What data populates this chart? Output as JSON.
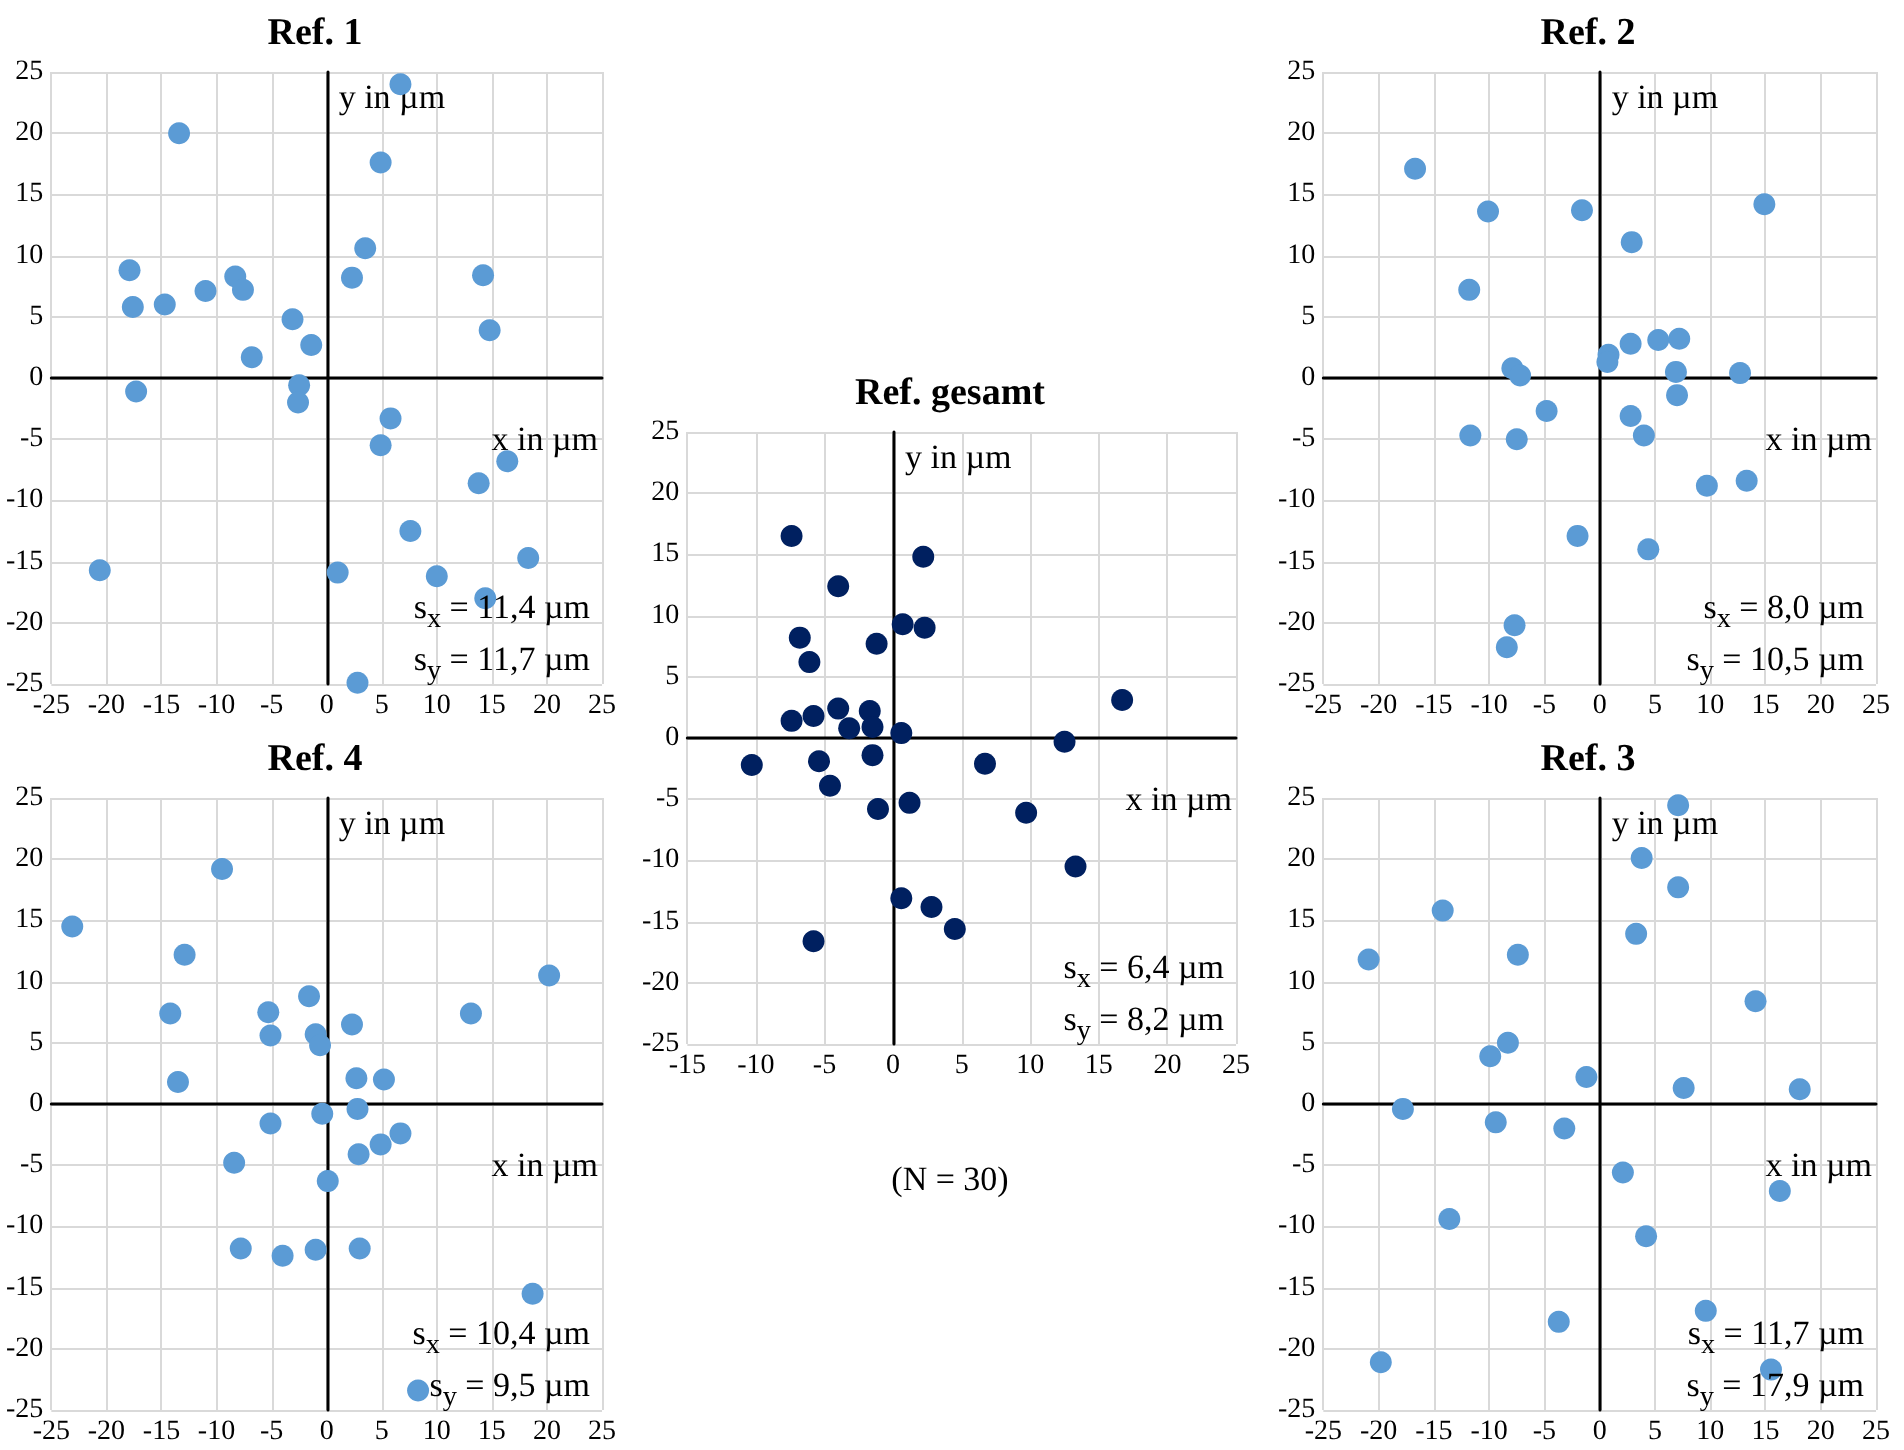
{
  "chart_data": [
    {
      "type": "scatter",
      "title": "Ref. 1",
      "xlabel": "x in µm",
      "ylabel": "y in µm",
      "grid": true,
      "marker": "circle",
      "xlim": [
        -25,
        25
      ],
      "ylim": [
        -25,
        25
      ],
      "xticks": [
        -25,
        -20,
        -15,
        -10,
        -5,
        0,
        5,
        10,
        15,
        20,
        25
      ],
      "yticks": [
        -25,
        -20,
        -15,
        -10,
        -5,
        0,
        5,
        10,
        15,
        20,
        25
      ],
      "annotations": [
        "s$_{x}$ = 11,4 µm",
        "s$_{y}$ = 11,7 µm"
      ],
      "series": [
        {
          "color": "#5b9bd5",
          "x": [
            -13.4,
            6.7,
            4.9,
            3.5,
            2.3,
            14.2,
            14.8,
            -17.9,
            -17.6,
            -14.7,
            -11.0,
            -8.3,
            -7.6,
            -6.8,
            -3.1,
            -1.4,
            -2.5,
            -2.6,
            -17.3,
            5.8,
            4.9,
            16.4,
            13.8,
            7.6,
            18.3,
            10.0,
            14.4,
            1.0,
            -20.6,
            2.8
          ],
          "values": [
            20.0,
            24.0,
            17.6,
            10.6,
            8.2,
            8.4,
            3.9,
            8.8,
            5.8,
            6.0,
            7.1,
            8.3,
            7.2,
            1.7,
            4.8,
            2.7,
            -0.6,
            -2.0,
            -1.1,
            -3.3,
            -5.5,
            -6.8,
            -8.6,
            -12.5,
            -14.7,
            -16.2,
            -18.0,
            -15.9,
            -15.7,
            -24.9
          ]
        }
      ]
    },
    {
      "type": "scatter",
      "title": "Ref. 2",
      "xlabel": "x in µm",
      "ylabel": "y in µm",
      "grid": true,
      "marker": "circle",
      "xlim": [
        -25,
        25
      ],
      "ylim": [
        -25,
        25
      ],
      "xticks": [
        -25,
        -20,
        -15,
        -10,
        -5,
        0,
        5,
        10,
        15,
        20,
        25
      ],
      "yticks": [
        -25,
        -20,
        -15,
        -10,
        -5,
        0,
        5,
        10,
        15,
        20,
        25
      ],
      "annotations": [
        "s$_{x}$ = 8,0 µm",
        "s$_{y}$ = 10,5 µm"
      ],
      "series": [
        {
          "color": "#5b9bd5",
          "x": [
            -16.7,
            -10.1,
            -1.6,
            2.9,
            14.9,
            -11.8,
            -7.9,
            -7.2,
            0.8,
            0.7,
            2.8,
            5.3,
            7.2,
            6.9,
            12.7,
            7.0,
            -4.8,
            2.8,
            4.0,
            -11.7,
            -7.5,
            9.7,
            13.3,
            -2.0,
            4.4,
            -7.7,
            -8.4
          ],
          "values": [
            17.1,
            13.6,
            13.7,
            11.1,
            14.2,
            7.2,
            0.8,
            0.2,
            1.9,
            1.3,
            2.8,
            3.1,
            3.2,
            0.5,
            0.4,
            -1.4,
            -2.7,
            -3.1,
            -4.7,
            -4.7,
            -5.0,
            -8.8,
            -8.4,
            -12.9,
            -14.0,
            -20.2,
            -22.0
          ]
        }
      ]
    },
    {
      "type": "scatter",
      "title": "Ref. gesamt",
      "xlabel": "x in µm",
      "ylabel": "y in µm",
      "grid": true,
      "marker": "circle",
      "xlim": [
        -15,
        25
      ],
      "ylim": [
        -25,
        25
      ],
      "xticks": [
        -15,
        -10,
        -5,
        0,
        5,
        10,
        15,
        20,
        25
      ],
      "yticks": [
        -25,
        -20,
        -15,
        -10,
        -5,
        0,
        5,
        10,
        15,
        20,
        25
      ],
      "annotations": [
        "s$_{x}$ = 6,4 µm",
        "s$_{y}$ = 8,2 µm",
        "(N = 30)"
      ],
      "series": [
        {
          "color": "#002060",
          "x": [
            -7.4,
            2.2,
            -4.0,
            0.7,
            2.3,
            -1.2,
            -6.8,
            -6.1,
            -4.0,
            -7.4,
            -5.8,
            -3.2,
            -1.7,
            -1.5,
            0.6,
            16.7,
            12.5,
            -10.3,
            -5.4,
            -1.5,
            -4.6,
            6.7,
            -1.1,
            1.2,
            9.7,
            13.3,
            0.6,
            2.8,
            4.5,
            -5.8
          ],
          "values": [
            16.5,
            14.8,
            12.4,
            9.3,
            9.0,
            7.7,
            8.2,
            6.2,
            2.4,
            1.4,
            1.8,
            0.8,
            2.2,
            0.9,
            0.4,
            3.1,
            -0.3,
            -2.2,
            -1.9,
            -1.4,
            -3.9,
            -2.1,
            -5.8,
            -5.3,
            -6.1,
            -10.5,
            -13.1,
            -13.8,
            -15.6,
            -16.6
          ]
        }
      ]
    },
    {
      "type": "scatter",
      "title": "Ref. 4",
      "xlabel": "x in µm",
      "ylabel": "y in µm",
      "grid": true,
      "marker": "circle",
      "xlim": [
        -25,
        25
      ],
      "ylim": [
        -25,
        25
      ],
      "xticks": [
        -25,
        -20,
        -15,
        -10,
        -5,
        0,
        5,
        10,
        15,
        20,
        25
      ],
      "yticks": [
        -25,
        -20,
        -15,
        -10,
        -5,
        0,
        5,
        10,
        15,
        20,
        25
      ],
      "annotations": [
        "s$_{x}$ = 10,4 µm",
        "s$_{y}$ = 9,5 µm"
      ],
      "series": [
        {
          "color": "#5b9bd5",
          "x": [
            -23.1,
            -9.5,
            -12.9,
            -14.2,
            -13.5,
            -1.6,
            -5.3,
            -5.1,
            -1.0,
            -0.6,
            2.3,
            13.1,
            20.2,
            2.7,
            5.2,
            2.8,
            -0.4,
            -5.1,
            6.7,
            4.9,
            2.9,
            -8.4,
            0.1,
            -7.8,
            -4.0,
            -1.0,
            3.0,
            18.7,
            8.3
          ],
          "values": [
            14.5,
            19.2,
            12.2,
            7.4,
            1.8,
            8.8,
            7.5,
            5.6,
            5.7,
            4.8,
            6.5,
            7.4,
            10.5,
            2.1,
            2.0,
            -0.4,
            -0.8,
            -1.6,
            -2.4,
            -3.3,
            -4.1,
            -4.8,
            -6.3,
            -11.8,
            -12.4,
            -11.9,
            -11.8,
            -15.5,
            -23.4
          ]
        }
      ]
    },
    {
      "type": "scatter",
      "title": "Ref. 3",
      "xlabel": "x in µm",
      "ylabel": "y in µm",
      "grid": true,
      "marker": "circle",
      "xlim": [
        -25,
        25
      ],
      "ylim": [
        -25,
        25
      ],
      "xticks": [
        -25,
        -20,
        -15,
        -10,
        -5,
        0,
        5,
        10,
        15,
        20,
        25
      ],
      "yticks": [
        -25,
        -20,
        -15,
        -10,
        -5,
        0,
        5,
        10,
        15,
        20,
        25
      ],
      "annotations": [
        "s$_{x}$ = 11,7 µm",
        "s$_{y}$ = 17,9 µm"
      ],
      "series": [
        {
          "color": "#5b9bd5",
          "x": [
            7.1,
            3.8,
            7.1,
            -14.2,
            3.3,
            -20.9,
            -7.4,
            14.1,
            -8.3,
            -9.9,
            -1.2,
            7.6,
            18.1,
            -17.8,
            -9.4,
            -3.2,
            2.1,
            16.3,
            -13.6,
            4.2,
            9.6,
            -3.7,
            -19.8,
            15.5
          ],
          "values": [
            24.4,
            20.1,
            17.7,
            15.8,
            13.9,
            11.8,
            12.2,
            8.4,
            5.0,
            3.9,
            2.2,
            1.3,
            1.2,
            -0.4,
            -1.5,
            -2.0,
            -5.6,
            -7.1,
            -9.4,
            -10.8,
            -16.9,
            -17.8,
            -21.1,
            -21.7
          ]
        }
      ]
    }
  ]
}
